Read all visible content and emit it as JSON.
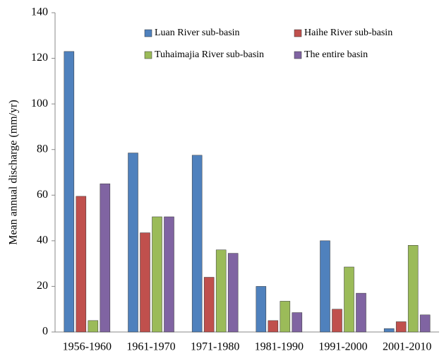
{
  "chart_data": {
    "type": "bar",
    "y_label": "Mean annual discharge (mm/yr)",
    "categories": [
      "1956-1960",
      "1961-1970",
      "1971-1980",
      "1981-1990",
      "1991-2000",
      "2001-2010"
    ],
    "series": [
      {
        "name": "Luan River sub-basin",
        "color": "#4f81bd",
        "values": [
          123,
          78.5,
          77.5,
          20,
          40,
          1.5
        ]
      },
      {
        "name": "Haihe River sub-basin",
        "color": "#c0504d",
        "values": [
          59.5,
          43.5,
          24,
          5,
          10,
          4.5
        ]
      },
      {
        "name": "Tuhaimajia River sub-basin",
        "color": "#9bbb59",
        "values": [
          5,
          50.5,
          36,
          13.5,
          28.5,
          38
        ]
      },
      {
        "name": "The entire basin",
        "color": "#8064a2",
        "values": [
          65,
          50.5,
          34.5,
          8.5,
          17,
          7.5
        ]
      }
    ],
    "ylim": [
      0,
      140
    ],
    "yticks": [
      0,
      20,
      40,
      60,
      80,
      100,
      120,
      140
    ],
    "grid": false
  }
}
